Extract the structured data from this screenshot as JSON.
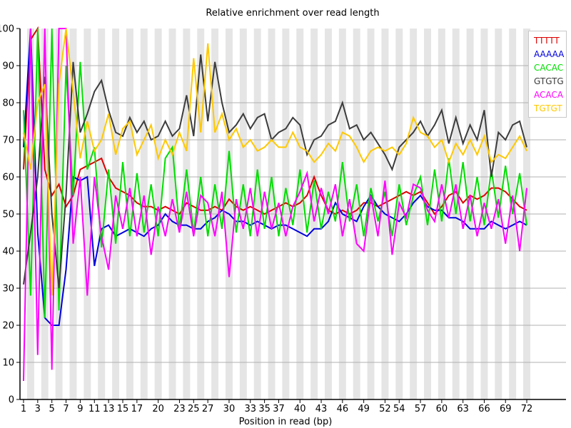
{
  "chart_data": {
    "type": "line",
    "title": "Relative enrichment over read length",
    "xlabel": "Position in read (bp)",
    "ylabel": "",
    "ylim": [
      0,
      100
    ],
    "xlim": [
      1,
      72
    ],
    "grid": true,
    "legend_position": "top-right",
    "y_ticks": [
      0,
      10,
      20,
      30,
      40,
      50,
      60,
      70,
      80,
      90,
      100
    ],
    "x_tick_labels": [
      1,
      3,
      5,
      7,
      9,
      11,
      13,
      15,
      17,
      20,
      23,
      25,
      27,
      30,
      33,
      35,
      37,
      40,
      43,
      46,
      49,
      52,
      54,
      57,
      60,
      63,
      66,
      69,
      72
    ],
    "background": {
      "band_color_odd": "#ffffff",
      "band_color_even": "#e5e5e5",
      "grid_color": "#b0b0b0",
      "axis_color": "#000000"
    },
    "series": [
      {
        "name": "TTTTT",
        "color": "#dd0000",
        "values": [
          62,
          97,
          100,
          62,
          55,
          58,
          52,
          55,
          62,
          63,
          64,
          65,
          60,
          57,
          56,
          55,
          53,
          52,
          52,
          51,
          52,
          51,
          50,
          53,
          52,
          51,
          51,
          52,
          51,
          54,
          52,
          51,
          52,
          51,
          50,
          51,
          52,
          53,
          52,
          53,
          55,
          60,
          55,
          51,
          50,
          51,
          50,
          51,
          53,
          53,
          52,
          53,
          54,
          55,
          56,
          55,
          56,
          53,
          50,
          52,
          55,
          56,
          53,
          55,
          54,
          55,
          57,
          57,
          56,
          54,
          52,
          51
        ]
      },
      {
        "name": "AAAAA",
        "color": "#0000dd",
        "values": [
          68,
          100,
          45,
          22,
          20,
          20,
          35,
          60,
          59,
          60,
          36,
          46,
          47,
          44,
          45,
          46,
          45,
          44,
          46,
          47,
          50,
          48,
          47,
          47,
          46,
          46,
          48,
          49,
          51,
          50,
          48,
          48,
          47,
          48,
          47,
          46,
          47,
          47,
          46,
          45,
          44,
          46,
          46,
          48,
          53,
          50,
          49,
          48,
          52,
          55,
          52,
          50,
          49,
          48,
          50,
          53,
          55,
          52,
          51,
          51,
          49,
          49,
          48,
          46,
          46,
          46,
          48,
          47,
          46,
          47,
          48,
          47
        ]
      },
      {
        "name": "CACAC",
        "color": "#00dd00",
        "values": [
          78,
          28,
          100,
          22,
          100,
          24,
          90,
          55,
          91,
          62,
          68,
          41,
          62,
          42,
          64,
          44,
          61,
          45,
          58,
          44,
          65,
          68,
          46,
          62,
          45,
          60,
          44,
          58,
          46,
          67,
          45,
          58,
          44,
          62,
          46,
          60,
          44,
          57,
          47,
          62,
          45,
          59,
          46,
          56,
          48,
          64,
          48,
          58,
          44,
          57,
          48,
          56,
          44,
          58,
          47,
          55,
          60,
          47,
          62,
          48,
          65,
          50,
          64,
          48,
          60,
          47,
          62,
          49,
          63,
          50,
          61,
          47
        ]
      },
      {
        "name": "GTGTG",
        "color": "#3c3c3c",
        "values": [
          31,
          45,
          60,
          87,
          50,
          30,
          55,
          91,
          72,
          77,
          83,
          86,
          78,
          72,
          71,
          76,
          72,
          75,
          70,
          71,
          75,
          71,
          73,
          82,
          71,
          93,
          75,
          91,
          80,
          72,
          74,
          77,
          73,
          76,
          77,
          70,
          72,
          73,
          76,
          74,
          66,
          70,
          71,
          74,
          75,
          80,
          73,
          74,
          70,
          72,
          69,
          66,
          62,
          68,
          70,
          72,
          75,
          71,
          74,
          78,
          69,
          76,
          69,
          74,
          70,
          78,
          60,
          72,
          70,
          74,
          75,
          68
        ]
      },
      {
        "name": "ACACA",
        "color": "#ff00ff",
        "values": [
          5,
          100,
          12,
          100,
          8,
          100,
          100,
          42,
          60,
          28,
          60,
          44,
          35,
          55,
          46,
          57,
          44,
          55,
          39,
          52,
          44,
          54,
          45,
          56,
          44,
          55,
          53,
          44,
          56,
          33,
          54,
          46,
          57,
          44,
          56,
          46,
          53,
          44,
          52,
          56,
          61,
          48,
          57,
          50,
          58,
          44,
          54,
          42,
          40,
          55,
          44,
          59,
          39,
          53,
          49,
          58,
          57,
          51,
          48,
          58,
          49,
          58,
          46,
          55,
          44,
          53,
          46,
          54,
          42,
          55,
          40,
          57
        ]
      },
      {
        "name": "TGTGT",
        "color": "#ffc800",
        "values": [
          72,
          62,
          80,
          85,
          28,
          85,
          100,
          83,
          65,
          75,
          67,
          70,
          77,
          66,
          73,
          75,
          66,
          70,
          74,
          65,
          70,
          66,
          72,
          67,
          92,
          72,
          96,
          72,
          77,
          70,
          73,
          68,
          70,
          67,
          68,
          70,
          68,
          68,
          72,
          68,
          67,
          64,
          66,
          69,
          67,
          72,
          71,
          68,
          64,
          67,
          68,
          67,
          68,
          66,
          69,
          76,
          72,
          71,
          68,
          70,
          64,
          69,
          66,
          70,
          66,
          71,
          64,
          66,
          65,
          68,
          71,
          67
        ]
      }
    ]
  }
}
